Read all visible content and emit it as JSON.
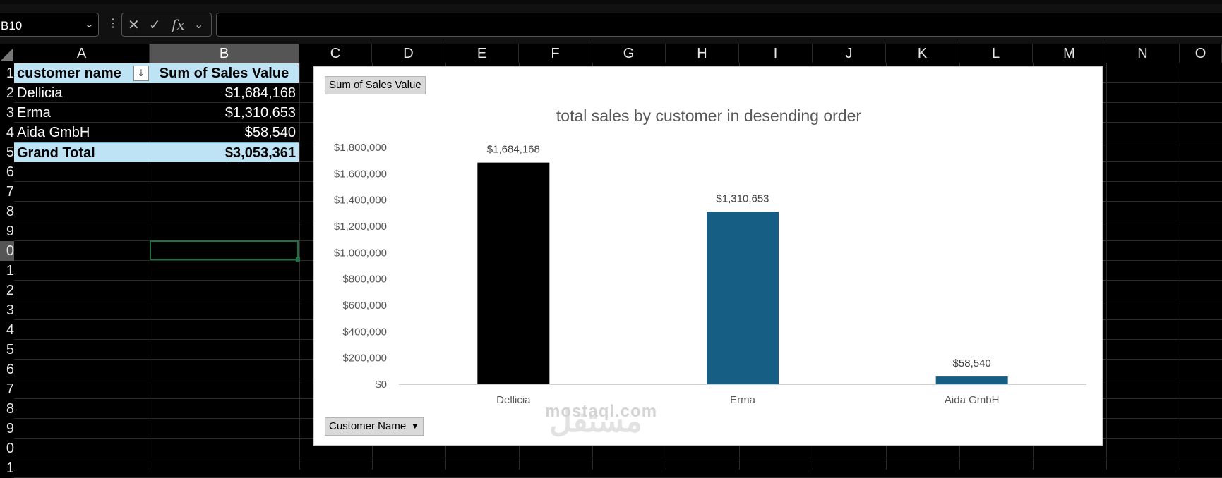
{
  "formula_bar": {
    "name_box": "B10",
    "formula": ""
  },
  "columns": [
    "A",
    "B",
    "C",
    "D",
    "E",
    "F",
    "G",
    "H",
    "I",
    "J",
    "K",
    "L",
    "M",
    "N",
    "O"
  ],
  "rows": [
    "1",
    "2",
    "3",
    "4",
    "5",
    "6",
    "7",
    "8",
    "9",
    "0",
    "1",
    "2",
    "3",
    "4",
    "5",
    "6",
    "7",
    "8",
    "9",
    "0",
    "1"
  ],
  "pivot": {
    "header_customer": "customer name",
    "header_sum": "Sum of Sales Value",
    "rows": [
      {
        "name": "Dellicia",
        "value": "$1,684,168"
      },
      {
        "name": "Erma",
        "value": "$1,310,653"
      },
      {
        "name": "Aida GmbH",
        "value": "$58,540"
      }
    ],
    "total_label": "Grand Total",
    "total_value": "$3,053,361"
  },
  "chart_data": {
    "type": "bar",
    "title": "total sales by customer in desending order",
    "categories": [
      "Dellicia",
      "Erma",
      "Aida GmbH"
    ],
    "values": [
      1684168,
      1310653,
      58540
    ],
    "data_labels": [
      "$1,684,168",
      "$1,310,653",
      "$58,540"
    ],
    "bar_colors": [
      "#000000",
      "#165e83",
      "#165e83"
    ],
    "ylim": [
      0,
      1800000
    ],
    "yticks": [
      "$0",
      "$200,000",
      "$400,000",
      "$600,000",
      "$800,000",
      "$1,000,000",
      "$1,200,000",
      "$1,400,000",
      "$1,600,000",
      "$1,800,000"
    ],
    "grid": false,
    "value_field_button": "Sum of Sales Value",
    "axis_field_button": "Customer Name"
  },
  "watermark": {
    "arabic": "مستقل",
    "latin": "mostaql.com"
  }
}
